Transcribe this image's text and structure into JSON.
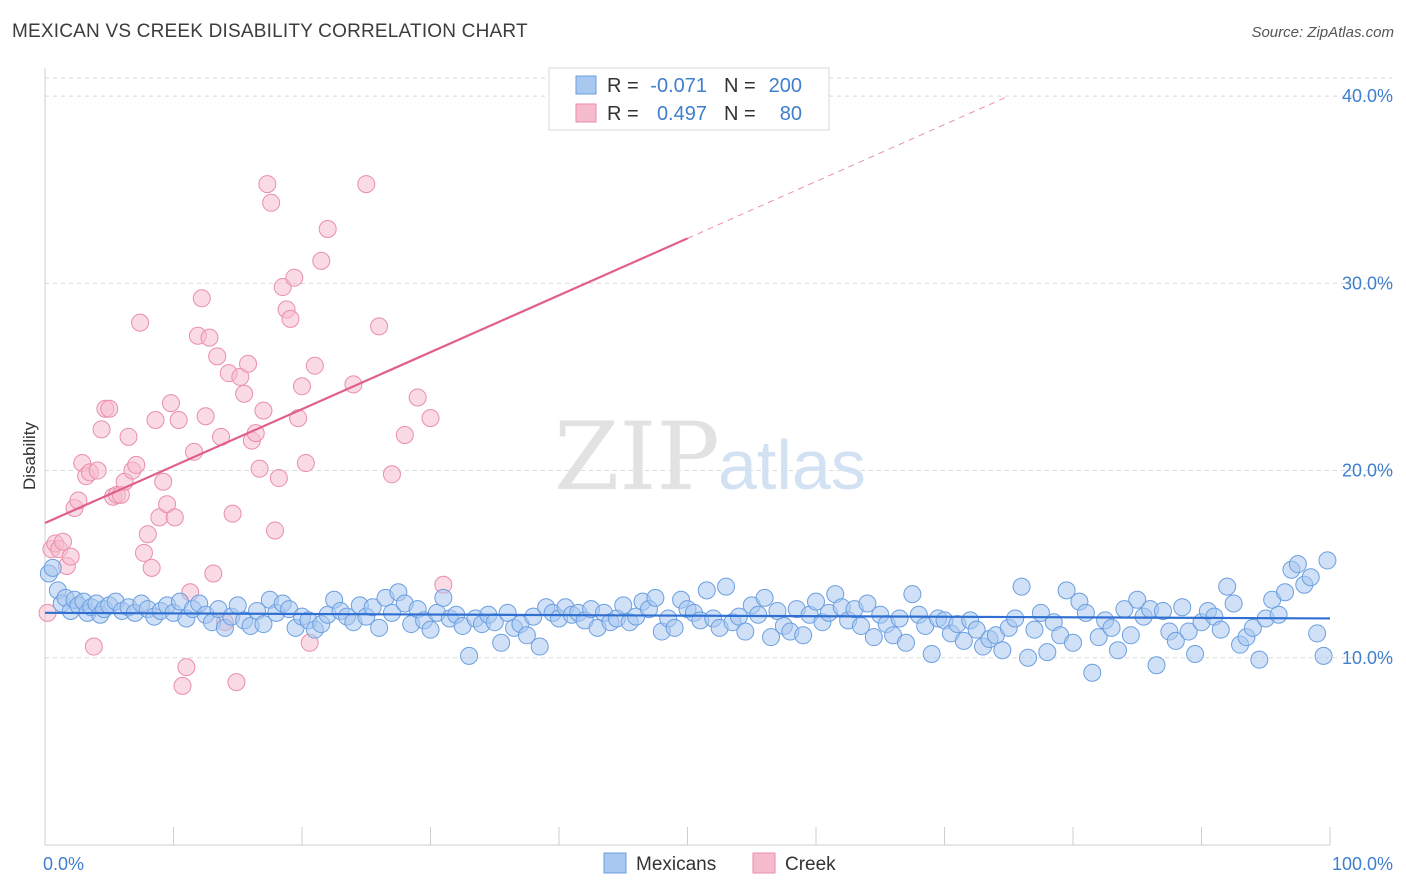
{
  "title": "MEXICAN VS CREEK DISABILITY CORRELATION CHART",
  "source": "Source: ZipAtlas.com",
  "watermark": {
    "zip": "ZIP",
    "atlas": "atlas"
  },
  "legend": {
    "rows": [
      {
        "r_label": "R =",
        "r_value": "-0.071",
        "n_label": "N =",
        "n_value": "200"
      },
      {
        "r_label": "R =",
        "r_value": "0.497",
        "n_label": "N =",
        "n_value": "80"
      }
    ]
  },
  "bottom_legend": [
    "Mexicans",
    "Creek"
  ],
  "colors": {
    "mexicans_fill": "#a9c8f0",
    "mexicans_stroke": "#6b9fe0",
    "mexicans_line": "#2f6fd1",
    "creek_fill": "#f6bccd",
    "creek_stroke": "#ea8eaa",
    "creek_line": "#e0608a",
    "tick_text": "#3f7fce",
    "grid": "#d9d9d9"
  },
  "chart_data": {
    "type": "scatter",
    "title": "MEXICAN VS CREEK DISABILITY CORRELATION CHART",
    "xlabel": "",
    "ylabel": "Disability",
    "xlim": [
      0,
      100
    ],
    "ylim": [
      0,
      41.5
    ],
    "x_tick_labels": [
      "0.0%",
      "100.0%"
    ],
    "y_ticks": [
      10,
      20,
      30,
      40
    ],
    "y_tick_labels": [
      "10.0%",
      "20.0%",
      "30.0%",
      "40.0%"
    ],
    "grid": true,
    "legend_position": "top-center",
    "series": [
      {
        "name": "Mexicans",
        "r": -0.071,
        "n": 200,
        "trend": {
          "x": [
            0,
            100
          ],
          "y": [
            12.4,
            12.1
          ]
        },
        "points": [
          [
            0.3,
            14.5
          ],
          [
            0.6,
            14.8
          ],
          [
            1,
            13.6
          ],
          [
            1.3,
            12.9
          ],
          [
            1.6,
            13.2
          ],
          [
            2,
            12.5
          ],
          [
            2.3,
            13.1
          ],
          [
            2.6,
            12.8
          ],
          [
            3,
            13
          ],
          [
            3.3,
            12.4
          ],
          [
            3.6,
            12.7
          ],
          [
            4,
            12.9
          ],
          [
            4.3,
            12.3
          ],
          [
            4.6,
            12.6
          ],
          [
            5,
            12.8
          ],
          [
            5.5,
            13
          ],
          [
            6,
            12.5
          ],
          [
            6.5,
            12.7
          ],
          [
            7,
            12.4
          ],
          [
            7.5,
            12.9
          ],
          [
            8,
            12.6
          ],
          [
            8.5,
            12.2
          ],
          [
            9,
            12.5
          ],
          [
            9.5,
            12.8
          ],
          [
            10,
            12.4
          ],
          [
            10.5,
            13
          ],
          [
            11,
            12.1
          ],
          [
            11.5,
            12.6
          ],
          [
            12,
            12.9
          ],
          [
            12.5,
            12.3
          ],
          [
            13,
            11.9
          ],
          [
            13.5,
            12.6
          ],
          [
            14,
            11.6
          ],
          [
            14.5,
            12.2
          ],
          [
            15,
            12.8
          ],
          [
            15.5,
            12
          ],
          [
            16,
            11.7
          ],
          [
            16.5,
            12.5
          ],
          [
            17,
            11.8
          ],
          [
            17.5,
            13.1
          ],
          [
            18,
            12.4
          ],
          [
            18.5,
            12.9
          ],
          [
            19,
            12.6
          ],
          [
            19.5,
            11.6
          ],
          [
            20,
            12.2
          ],
          [
            20.5,
            12
          ],
          [
            21,
            11.5
          ],
          [
            21.5,
            11.8
          ],
          [
            22,
            12.3
          ],
          [
            22.5,
            13.1
          ],
          [
            23,
            12.5
          ],
          [
            23.5,
            12.2
          ],
          [
            24,
            11.9
          ],
          [
            24.5,
            12.8
          ],
          [
            25,
            12.2
          ],
          [
            25.5,
            12.7
          ],
          [
            26,
            11.6
          ],
          [
            26.5,
            13.2
          ],
          [
            27,
            12.4
          ],
          [
            27.5,
            13.5
          ],
          [
            28,
            12.9
          ],
          [
            28.5,
            11.8
          ],
          [
            29,
            12.6
          ],
          [
            29.5,
            12
          ],
          [
            30,
            11.5
          ],
          [
            30.5,
            12.4
          ],
          [
            31,
            13.2
          ],
          [
            31.5,
            12.1
          ],
          [
            32,
            12.3
          ],
          [
            32.5,
            11.7
          ],
          [
            33,
            10.1
          ],
          [
            33.5,
            12.1
          ],
          [
            34,
            11.8
          ],
          [
            34.5,
            12.3
          ],
          [
            35,
            11.9
          ],
          [
            35.5,
            10.8
          ],
          [
            36,
            12.4
          ],
          [
            36.5,
            11.6
          ],
          [
            37,
            11.8
          ],
          [
            37.5,
            11.2
          ],
          [
            38,
            12.2
          ],
          [
            38.5,
            10.6
          ],
          [
            39,
            12.7
          ],
          [
            39.5,
            12.4
          ],
          [
            40,
            12.1
          ],
          [
            40.5,
            12.7
          ],
          [
            41,
            12.3
          ],
          [
            41.5,
            12.4
          ],
          [
            42,
            12
          ],
          [
            42.5,
            12.6
          ],
          [
            43,
            11.6
          ],
          [
            43.5,
            12.4
          ],
          [
            44,
            11.9
          ],
          [
            44.5,
            12.1
          ],
          [
            45,
            12.8
          ],
          [
            45.5,
            11.9
          ],
          [
            46,
            12.2
          ],
          [
            46.5,
            13
          ],
          [
            47,
            12.6
          ],
          [
            47.5,
            13.2
          ],
          [
            48,
            11.4
          ],
          [
            48.5,
            12.1
          ],
          [
            49,
            11.6
          ],
          [
            49.5,
            13.1
          ],
          [
            50,
            12.6
          ],
          [
            50.5,
            12.4
          ],
          [
            51,
            12
          ],
          [
            51.5,
            13.6
          ],
          [
            52,
            12.1
          ],
          [
            52.5,
            11.6
          ],
          [
            53,
            13.8
          ],
          [
            53.5,
            11.9
          ],
          [
            54,
            12.2
          ],
          [
            54.5,
            11.4
          ],
          [
            55,
            12.8
          ],
          [
            55.5,
            12.3
          ],
          [
            56,
            13.2
          ],
          [
            56.5,
            11.1
          ],
          [
            57,
            12.5
          ],
          [
            57.5,
            11.7
          ],
          [
            58,
            11.4
          ],
          [
            58.5,
            12.6
          ],
          [
            59,
            11.2
          ],
          [
            59.5,
            12.3
          ],
          [
            60,
            13
          ],
          [
            60.5,
            11.9
          ],
          [
            61,
            12.4
          ],
          [
            61.5,
            13.4
          ],
          [
            62,
            12.7
          ],
          [
            62.5,
            12
          ],
          [
            63,
            12.6
          ],
          [
            63.5,
            11.7
          ],
          [
            64,
            12.9
          ],
          [
            64.5,
            11.1
          ],
          [
            65,
            12.3
          ],
          [
            65.5,
            11.8
          ],
          [
            66,
            11.2
          ],
          [
            66.5,
            12.1
          ],
          [
            67,
            10.8
          ],
          [
            67.5,
            13.4
          ],
          [
            68,
            12.3
          ],
          [
            68.5,
            11.7
          ],
          [
            69,
            10.2
          ],
          [
            69.5,
            12.1
          ],
          [
            70,
            12
          ],
          [
            70.5,
            11.3
          ],
          [
            71,
            11.8
          ],
          [
            71.5,
            10.9
          ],
          [
            72,
            12
          ],
          [
            72.5,
            11.5
          ],
          [
            73,
            10.6
          ],
          [
            73.5,
            11
          ],
          [
            74,
            11.2
          ],
          [
            74.5,
            10.4
          ],
          [
            75,
            11.6
          ],
          [
            75.5,
            12.1
          ],
          [
            76,
            13.8
          ],
          [
            76.5,
            10
          ],
          [
            77,
            11.5
          ],
          [
            77.5,
            12.4
          ],
          [
            78,
            10.3
          ],
          [
            78.5,
            11.9
          ],
          [
            79,
            11.2
          ],
          [
            79.5,
            13.6
          ],
          [
            80,
            10.8
          ],
          [
            80.5,
            13
          ],
          [
            81,
            12.4
          ],
          [
            81.5,
            9.2
          ],
          [
            82,
            11.1
          ],
          [
            82.5,
            12
          ],
          [
            83,
            11.6
          ],
          [
            83.5,
            10.4
          ],
          [
            84,
            12.6
          ],
          [
            84.5,
            11.2
          ],
          [
            85,
            13.1
          ],
          [
            85.5,
            12.2
          ],
          [
            86,
            12.6
          ],
          [
            86.5,
            9.6
          ],
          [
            87,
            12.5
          ],
          [
            87.5,
            11.4
          ],
          [
            88,
            10.9
          ],
          [
            88.5,
            12.7
          ],
          [
            89,
            11.4
          ],
          [
            89.5,
            10.2
          ],
          [
            90,
            11.9
          ],
          [
            90.5,
            12.5
          ],
          [
            91,
            12.2
          ],
          [
            91.5,
            11.5
          ],
          [
            92,
            13.8
          ],
          [
            92.5,
            12.9
          ],
          [
            93,
            10.7
          ],
          [
            93.5,
            11.1
          ],
          [
            94,
            11.6
          ],
          [
            94.5,
            9.9
          ],
          [
            95,
            12.1
          ],
          [
            95.5,
            13.1
          ],
          [
            96,
            12.3
          ],
          [
            96.5,
            13.5
          ],
          [
            97,
            14.7
          ],
          [
            97.5,
            15
          ],
          [
            98,
            13.9
          ],
          [
            98.5,
            14.3
          ],
          [
            99,
            11.3
          ],
          [
            99.5,
            10.1
          ],
          [
            99.8,
            15.2
          ]
        ]
      },
      {
        "name": "Creek",
        "r": 0.497,
        "n": 80,
        "trend": {
          "x": [
            0,
            50
          ],
          "y": [
            17.2,
            32.4
          ]
        },
        "trend_dashed": {
          "x": [
            50,
            75
          ],
          "y": [
            32.4,
            40
          ]
        },
        "points": [
          [
            0.2,
            12.4
          ],
          [
            0.5,
            15.8
          ],
          [
            0.8,
            16.1
          ],
          [
            1.1,
            15.8
          ],
          [
            1.4,
            16.2
          ],
          [
            1.7,
            14.9
          ],
          [
            2,
            15.4
          ],
          [
            2.3,
            18
          ],
          [
            2.6,
            18.4
          ],
          [
            2.9,
            20.4
          ],
          [
            3.2,
            19.7
          ],
          [
            3.5,
            19.9
          ],
          [
            3.8,
            10.6
          ],
          [
            4.1,
            20
          ],
          [
            4.4,
            22.2
          ],
          [
            4.7,
            23.3
          ],
          [
            5,
            23.3
          ],
          [
            5.3,
            18.6
          ],
          [
            5.6,
            18.7
          ],
          [
            5.9,
            18.7
          ],
          [
            6.2,
            19.4
          ],
          [
            6.5,
            21.8
          ],
          [
            6.8,
            20
          ],
          [
            7.1,
            20.3
          ],
          [
            7.4,
            27.9
          ],
          [
            7.7,
            15.6
          ],
          [
            8,
            16.6
          ],
          [
            8.3,
            14.8
          ],
          [
            8.6,
            22.7
          ],
          [
            8.9,
            17.5
          ],
          [
            9.2,
            19.4
          ],
          [
            9.5,
            18.2
          ],
          [
            9.8,
            23.6
          ],
          [
            10.1,
            17.5
          ],
          [
            10.4,
            22.7
          ],
          [
            10.7,
            8.5
          ],
          [
            11,
            9.5
          ],
          [
            11.3,
            13.5
          ],
          [
            11.6,
            21
          ],
          [
            11.9,
            27.2
          ],
          [
            12.2,
            29.2
          ],
          [
            12.5,
            22.9
          ],
          [
            12.8,
            27.1
          ],
          [
            13.1,
            14.5
          ],
          [
            13.4,
            26.1
          ],
          [
            13.7,
            21.8
          ],
          [
            14,
            11.9
          ],
          [
            14.3,
            25.2
          ],
          [
            14.6,
            17.7
          ],
          [
            14.9,
            8.7
          ],
          [
            15.2,
            25
          ],
          [
            15.5,
            24.1
          ],
          [
            15.8,
            25.7
          ],
          [
            16.1,
            21.6
          ],
          [
            16.4,
            22
          ],
          [
            16.7,
            20.1
          ],
          [
            17,
            23.2
          ],
          [
            17.3,
            35.3
          ],
          [
            17.6,
            34.3
          ],
          [
            17.9,
            16.8
          ],
          [
            18.2,
            19.6
          ],
          [
            18.5,
            29.8
          ],
          [
            18.8,
            28.6
          ],
          [
            19.1,
            28.1
          ],
          [
            19.4,
            30.3
          ],
          [
            19.7,
            22.8
          ],
          [
            20,
            24.5
          ],
          [
            20.3,
            20.4
          ],
          [
            20.6,
            10.8
          ],
          [
            21,
            25.6
          ],
          [
            21.5,
            31.2
          ],
          [
            22,
            32.9
          ],
          [
            24,
            24.6
          ],
          [
            25,
            35.3
          ],
          [
            26,
            27.7
          ],
          [
            27,
            19.8
          ],
          [
            28,
            21.9
          ],
          [
            29,
            23.9
          ],
          [
            30,
            22.8
          ],
          [
            31,
            13.9
          ]
        ]
      }
    ]
  }
}
